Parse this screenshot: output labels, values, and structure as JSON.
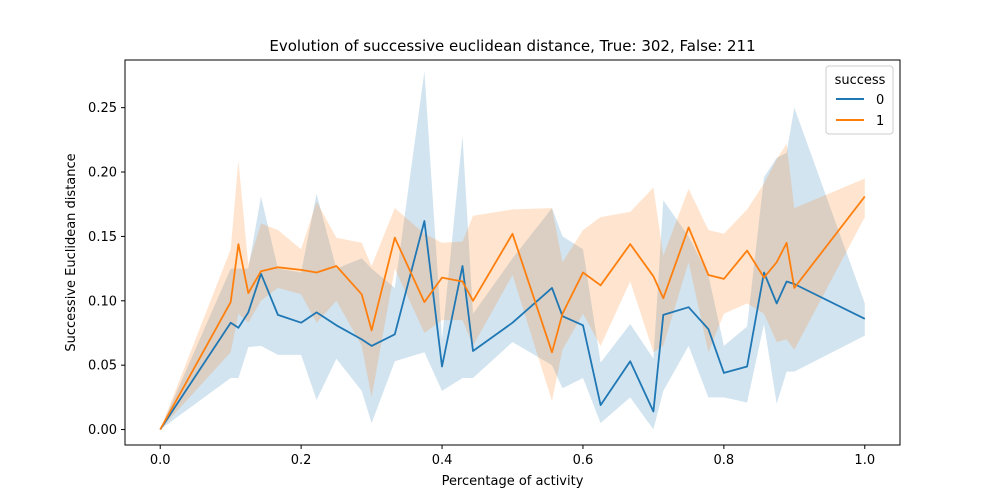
{
  "chart_data": {
    "type": "line",
    "title": "Evolution of successive euclidean distance, True: 302, False: 211",
    "xlabel": "Percentage of activity",
    "ylabel": "Successive Euclidean distance",
    "xlim": [
      -0.05,
      1.05
    ],
    "ylim": [
      -0.012,
      0.287
    ],
    "xticks": [
      0.0,
      0.2,
      0.4,
      0.6,
      0.8,
      1.0
    ],
    "xtick_labels": [
      "0.0",
      "0.2",
      "0.4",
      "0.6",
      "0.8",
      "1.0"
    ],
    "yticks": [
      0.0,
      0.05,
      0.1,
      0.15,
      0.2,
      0.25
    ],
    "ytick_labels": [
      "0.00",
      "0.05",
      "0.10",
      "0.15",
      "0.20",
      "0.25"
    ],
    "grid": false,
    "legend": {
      "title": "success",
      "placement": "top-right"
    },
    "series": [
      {
        "name": "0",
        "color": "#1f77b4",
        "x": [
          0.0,
          0.1,
          0.111,
          0.125,
          0.143,
          0.167,
          0.2,
          0.222,
          0.25,
          0.286,
          0.3,
          0.333,
          0.375,
          0.4,
          0.429,
          0.444,
          0.5,
          0.556,
          0.571,
          0.6,
          0.625,
          0.667,
          0.7,
          0.714,
          0.75,
          0.778,
          0.8,
          0.833,
          0.857,
          0.875,
          0.889,
          0.9,
          1.0
        ],
        "y": [
          0.0,
          0.083,
          0.079,
          0.091,
          0.121,
          0.089,
          0.083,
          0.091,
          0.081,
          0.07,
          0.065,
          0.074,
          0.162,
          0.049,
          0.127,
          0.061,
          0.083,
          0.11,
          0.088,
          0.081,
          0.019,
          0.053,
          0.014,
          0.089,
          0.095,
          0.078,
          0.044,
          0.049,
          0.122,
          0.098,
          0.115,
          0.113,
          0.086
        ],
        "ci_lower": [
          0.0,
          0.04,
          0.04,
          0.064,
          0.065,
          0.058,
          0.058,
          0.023,
          0.055,
          0.03,
          0.005,
          0.053,
          0.06,
          0.03,
          0.04,
          0.04,
          0.068,
          0.05,
          0.032,
          0.04,
          0.005,
          0.025,
          0.0,
          0.03,
          0.065,
          0.025,
          0.025,
          0.021,
          0.082,
          0.02,
          0.045,
          0.045,
          0.073
        ],
        "ci_upper": [
          0.0,
          0.125,
          0.125,
          0.125,
          0.181,
          0.125,
          0.122,
          0.183,
          0.125,
          0.133,
          0.125,
          0.11,
          0.278,
          0.07,
          0.228,
          0.09,
          0.133,
          0.172,
          0.15,
          0.14,
          0.052,
          0.082,
          0.055,
          0.178,
          0.15,
          0.12,
          0.065,
          0.08,
          0.196,
          0.211,
          0.215,
          0.25,
          0.098
        ]
      },
      {
        "name": "1",
        "color": "#ff7f0e",
        "x": [
          0.0,
          0.1,
          0.111,
          0.125,
          0.143,
          0.167,
          0.2,
          0.222,
          0.25,
          0.286,
          0.3,
          0.333,
          0.375,
          0.4,
          0.429,
          0.444,
          0.5,
          0.556,
          0.571,
          0.6,
          0.625,
          0.667,
          0.7,
          0.714,
          0.75,
          0.778,
          0.8,
          0.833,
          0.857,
          0.875,
          0.889,
          0.9,
          1.0
        ],
        "y": [
          0.0,
          0.099,
          0.144,
          0.106,
          0.123,
          0.126,
          0.124,
          0.122,
          0.127,
          0.105,
          0.077,
          0.149,
          0.099,
          0.118,
          0.115,
          0.1,
          0.152,
          0.06,
          0.09,
          0.122,
          0.112,
          0.144,
          0.119,
          0.102,
          0.157,
          0.12,
          0.117,
          0.139,
          0.118,
          0.13,
          0.145,
          0.11,
          0.181
        ],
        "ci_lower": [
          0.0,
          0.06,
          0.09,
          0.083,
          0.1,
          0.11,
          0.105,
          0.083,
          0.1,
          0.065,
          0.025,
          0.125,
          0.075,
          0.085,
          0.085,
          0.065,
          0.12,
          0.022,
          0.062,
          0.09,
          0.065,
          0.115,
          0.06,
          0.065,
          0.13,
          0.06,
          0.09,
          0.098,
          0.09,
          0.068,
          0.07,
          0.062,
          0.165
        ],
        "ci_upper": [
          0.0,
          0.14,
          0.209,
          0.128,
          0.16,
          0.155,
          0.14,
          0.177,
          0.149,
          0.145,
          0.127,
          0.172,
          0.152,
          0.145,
          0.146,
          0.166,
          0.171,
          0.172,
          0.13,
          0.155,
          0.165,
          0.169,
          0.188,
          0.135,
          0.187,
          0.155,
          0.152,
          0.171,
          0.191,
          0.21,
          0.222,
          0.172,
          0.195
        ]
      }
    ]
  }
}
